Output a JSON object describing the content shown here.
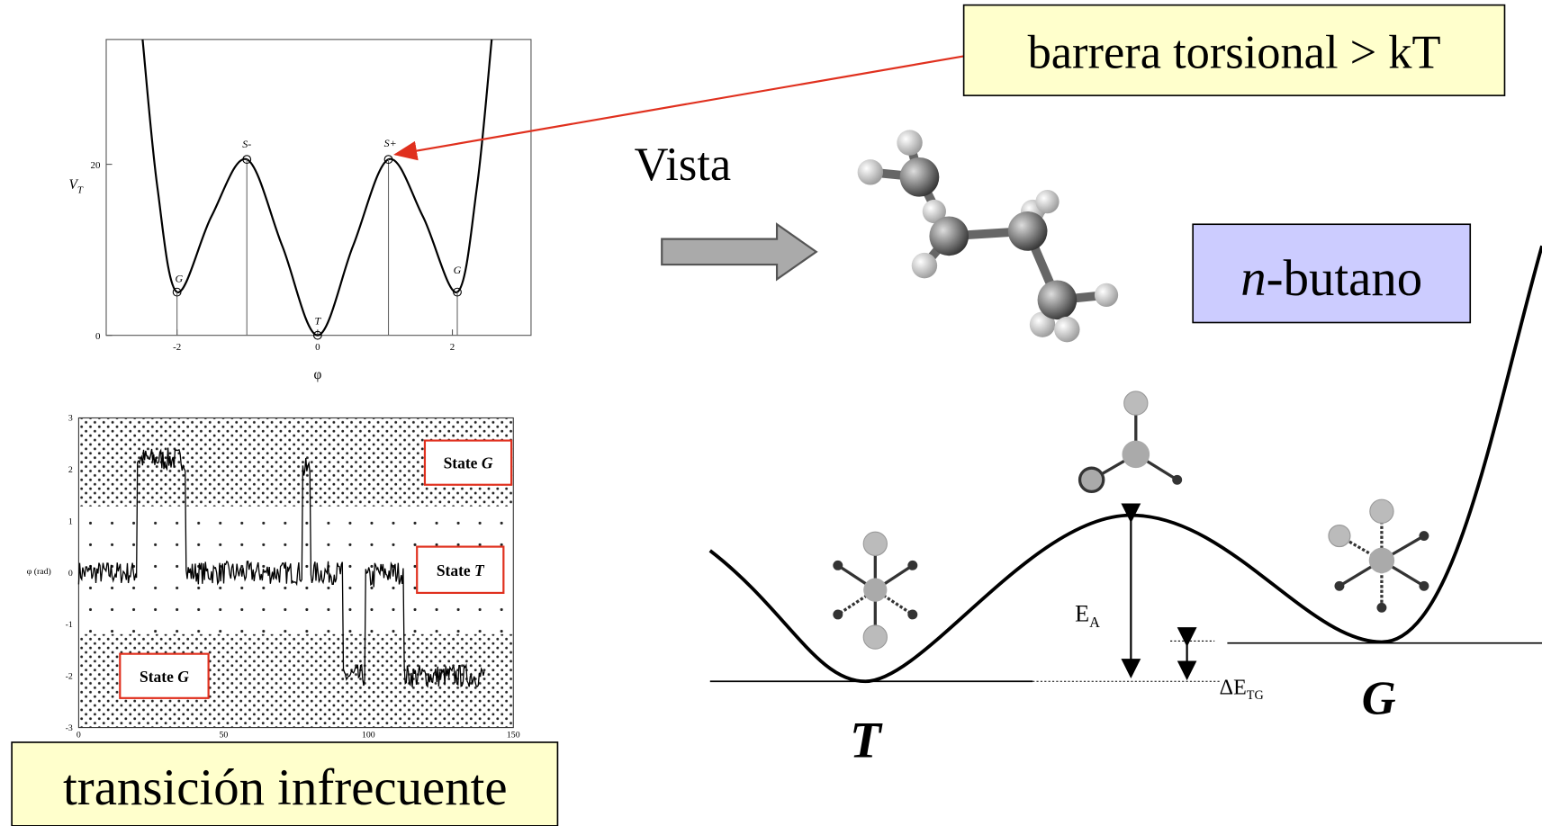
{
  "potential_plot": {
    "y_label": "V",
    "y_label_sub": "T",
    "x_label": "φ",
    "xticks": [
      "-2",
      "0",
      "2"
    ],
    "yticks": [
      "0",
      "20"
    ],
    "points": [
      "S-",
      "S+",
      "G",
      "T",
      "G"
    ]
  },
  "trajectory_plot": {
    "y_label": "φ (rad)",
    "yticks": [
      "3",
      "2",
      "1",
      "0",
      "-1",
      "-2",
      "-3"
    ],
    "xticks": [
      "0",
      "50",
      "100",
      "150"
    ],
    "states": [
      {
        "prefix": "State ",
        "symbol": "G"
      },
      {
        "prefix": "State ",
        "symbol": "T"
      },
      {
        "prefix": "State ",
        "symbol": "G"
      }
    ]
  },
  "callouts": {
    "barrier": "barrera torsional > kT",
    "transition": "transición infrecuente",
    "view": "Vista",
    "molecule_prefix": "n",
    "molecule": "-butano"
  },
  "energy_diagram": {
    "ea": "E",
    "ea_sub": "A",
    "de": "ΔE",
    "de_sub": "TG",
    "trans": "T",
    "gauche": "G"
  }
}
